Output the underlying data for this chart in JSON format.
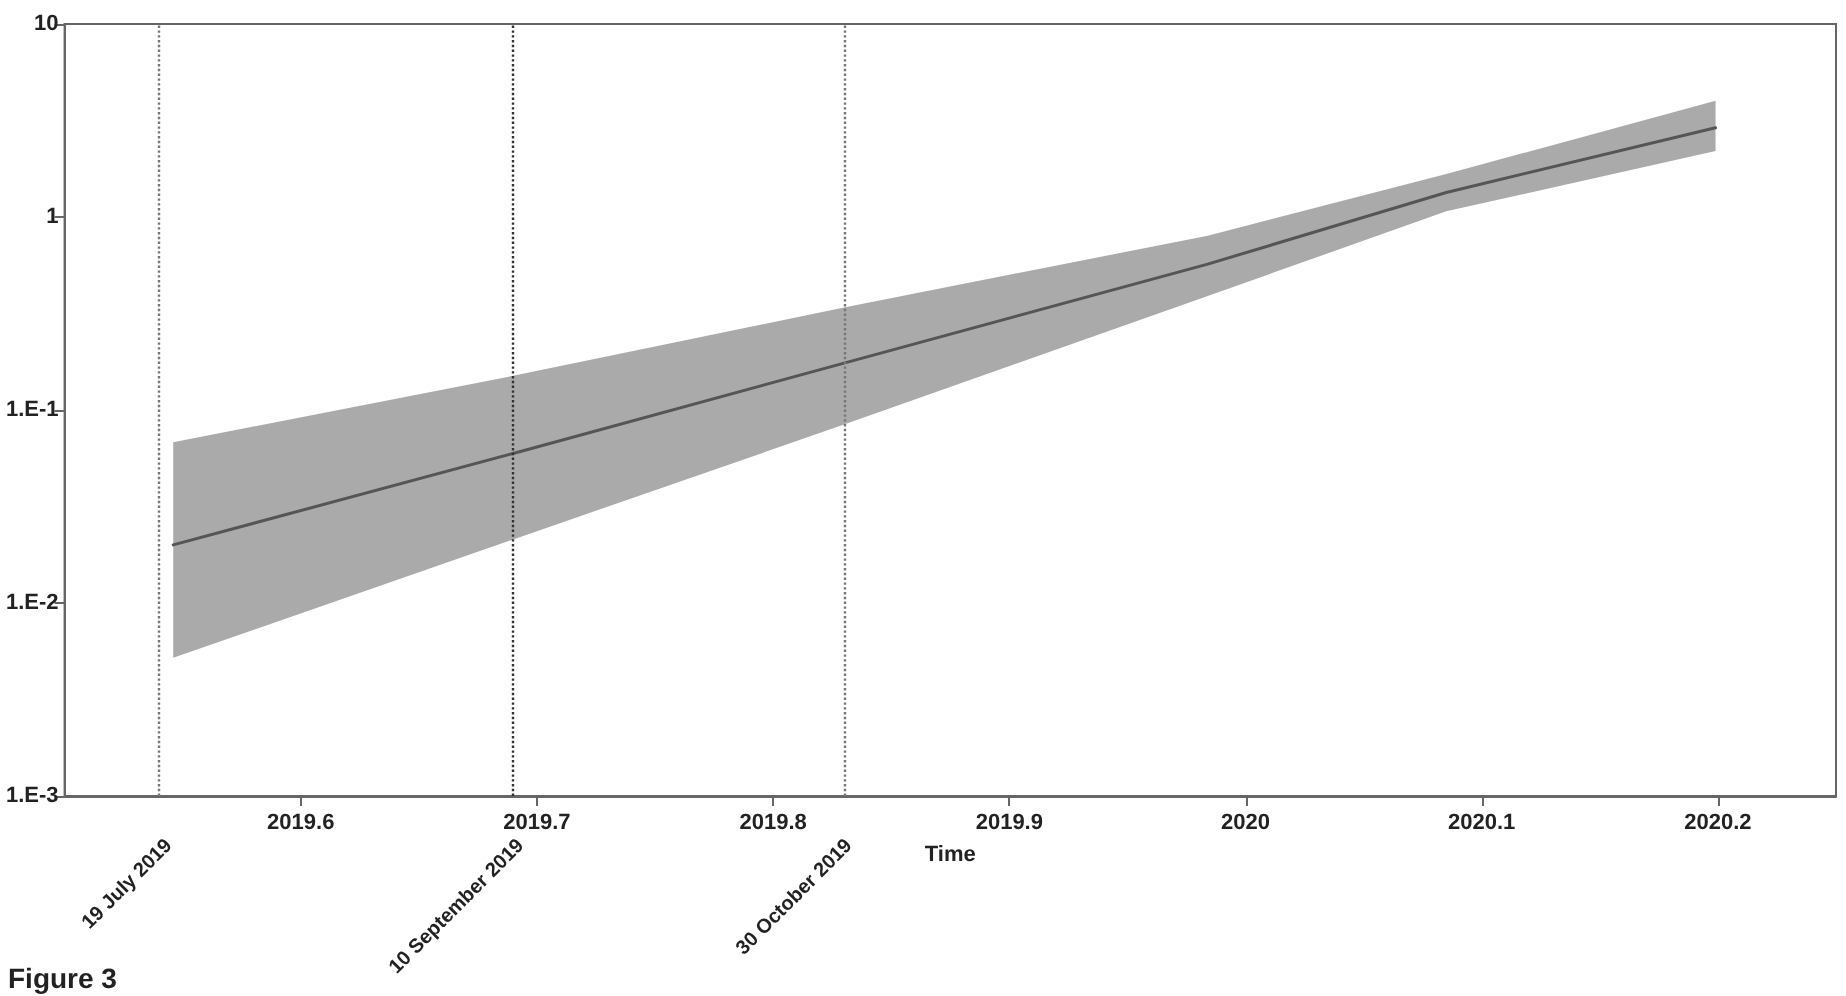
{
  "chart_data": {
    "type": "line",
    "xlabel": "Time",
    "annotations": [
      "Figure 3"
    ],
    "xlim": [
      2019.5,
      2020.25
    ],
    "xticks": [
      2019.6,
      2019.7,
      2019.8,
      2019.9,
      2020,
      2020.1,
      2020.2
    ],
    "ylim": [
      0.001,
      10
    ],
    "yticks": [
      {
        "value": 0.001,
        "label": "1.E-3"
      },
      {
        "value": 0.01,
        "label": "1.E-2"
      },
      {
        "value": 0.1,
        "label": "1.E-1"
      },
      1,
      10
    ],
    "log": "y",
    "grid": false,
    "legend": false,
    "marker": "none",
    "line_style": "solid",
    "series": [
      {
        "color": "#555555",
        "x": [
          2019.546,
          2019.693,
          2019.83,
          2019.984,
          2020.085,
          2020.199
        ],
        "values": [
          0.02,
          0.061,
          0.175,
          0.57,
          1.34,
          2.9
        ],
        "lower": [
          0.0052,
          0.022,
          0.084,
          0.39,
          1.07,
          2.2
        ],
        "upper": [
          0.068,
          0.153,
          0.34,
          0.8,
          1.67,
          4.0
        ]
      }
    ],
    "ref_lines": [
      {
        "axis": "x",
        "value": 2019.543,
        "label": "19 July 2019",
        "color": "#777777",
        "line_style": "dotted"
      },
      {
        "axis": "x",
        "value": 2019.692,
        "label": "10 September 2019",
        "color": "#333333",
        "line_style": "dotted"
      },
      {
        "axis": "x",
        "value": 2019.831,
        "label": "30 October 2019",
        "color": "#777777",
        "line_style": "dotted"
      }
    ]
  }
}
